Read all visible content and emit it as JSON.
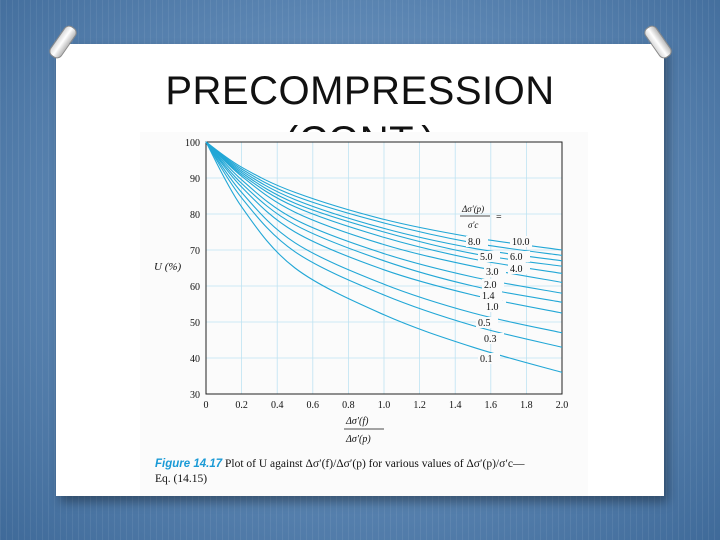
{
  "slide": {
    "title_line1": "PRECOMPRESSION",
    "title_line2": "(CONT.)"
  },
  "caption": {
    "figure_label": "Figure 14.17",
    "text_line1": "Plot of U against Δσ′(f)/Δσ′(p) for various values of Δσ′(p)/σ′c—",
    "text_line2": "Eq. (14.15)"
  },
  "chart_data": {
    "type": "line",
    "ylabel": "U (%)",
    "xlabel_num": "Δσ′(f)",
    "xlabel_den": "Δσ′(p)",
    "legend_header": "Δσ′(p)",
    "legend_header_den": "σ′c",
    "legend_eq": "=",
    "xlim": [
      0,
      2.0
    ],
    "ylim": [
      30,
      100
    ],
    "xticks": [
      "0",
      "0.2",
      "0.4",
      "0.6",
      "0.8",
      "1.0",
      "1.2",
      "1.4",
      "1.6",
      "1.8",
      "2.0"
    ],
    "yticks": [
      "30",
      "40",
      "50",
      "60",
      "70",
      "80",
      "90",
      "100"
    ],
    "line_color": "#22a7d6",
    "series": [
      {
        "name": "10.0",
        "x": [
          0,
          0.2,
          0.5,
          1.0,
          1.5,
          2.0
        ],
        "y": [
          100,
          93,
          86,
          78.5,
          73.5,
          70
        ]
      },
      {
        "name": "8.0",
        "x": [
          0,
          0.2,
          0.5,
          1.0,
          1.5,
          2.0
        ],
        "y": [
          100,
          92.5,
          85,
          77.5,
          72,
          68.5
        ]
      },
      {
        "name": "6.0",
        "x": [
          0,
          0.2,
          0.5,
          1.0,
          1.5,
          2.0
        ],
        "y": [
          100,
          92,
          84,
          76,
          70.5,
          67
        ]
      },
      {
        "name": "5.0",
        "x": [
          0,
          0.2,
          0.5,
          1.0,
          1.5,
          2.0
        ],
        "y": [
          100,
          91.5,
          83,
          75,
          69,
          65.5
        ]
      },
      {
        "name": "4.0",
        "x": [
          0,
          0.2,
          0.5,
          1.0,
          1.5,
          2.0
        ],
        "y": [
          100,
          91,
          82,
          73.5,
          67.5,
          63.5
        ]
      },
      {
        "name": "3.0",
        "x": [
          0,
          0.2,
          0.5,
          1.0,
          1.5,
          2.0
        ],
        "y": [
          100,
          90.5,
          80.5,
          71.5,
          65.5,
          61
        ]
      },
      {
        "name": "2.0",
        "x": [
          0,
          0.2,
          0.5,
          1.0,
          1.5,
          2.0
        ],
        "y": [
          100,
          89.5,
          78.5,
          69,
          62.5,
          58
        ]
      },
      {
        "name": "1.4",
        "x": [
          0,
          0.2,
          0.5,
          1.0,
          1.5,
          2.0
        ],
        "y": [
          100,
          88.5,
          77,
          67,
          60,
          55.5
        ]
      },
      {
        "name": "1.0",
        "x": [
          0,
          0.2,
          0.5,
          1.0,
          1.5,
          2.0
        ],
        "y": [
          100,
          87.5,
          75,
          64.5,
          57.5,
          52.5
        ]
      },
      {
        "name": "0.5",
        "x": [
          0,
          0.2,
          0.5,
          1.0,
          1.5,
          2.0
        ],
        "y": [
          100,
          86,
          72,
          60.5,
          52.5,
          47
        ]
      },
      {
        "name": "0.3",
        "x": [
          0,
          0.2,
          0.5,
          1.0,
          1.5,
          2.0
        ],
        "y": [
          100,
          84.5,
          69.5,
          57.5,
          49,
          43
        ]
      },
      {
        "name": "0.1",
        "x": [
          0,
          0.2,
          0.5,
          1.0,
          1.5,
          2.0
        ],
        "y": [
          100,
          82,
          65,
          52,
          43,
          36
        ]
      }
    ]
  }
}
